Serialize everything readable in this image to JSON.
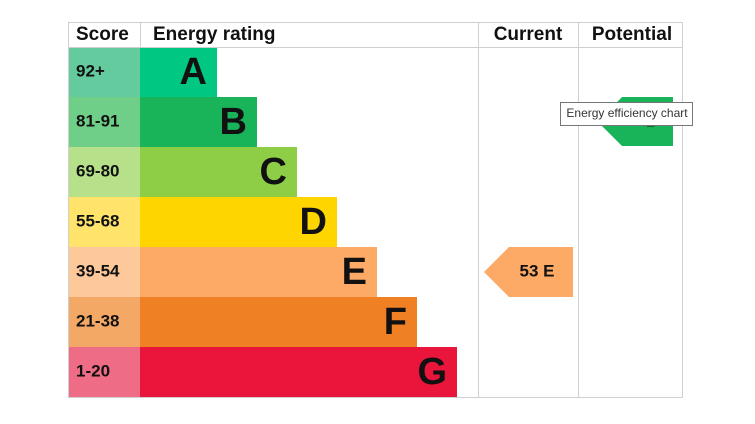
{
  "header": {
    "score": "Score",
    "rating": "Energy rating",
    "current": "Current",
    "potential": "Potential"
  },
  "rows": [
    {
      "score": "92+",
      "letter": "A"
    },
    {
      "score": "81-91",
      "letter": "B"
    },
    {
      "score": "69-80",
      "letter": "C"
    },
    {
      "score": "55-68",
      "letter": "D"
    },
    {
      "score": "39-54",
      "letter": "E"
    },
    {
      "score": "21-38",
      "letter": "F"
    },
    {
      "score": "1-20",
      "letter": "G"
    }
  ],
  "current": {
    "label": "53 E"
  },
  "potential": {
    "label": "B"
  },
  "tooltip": "Energy efficiency chart"
}
